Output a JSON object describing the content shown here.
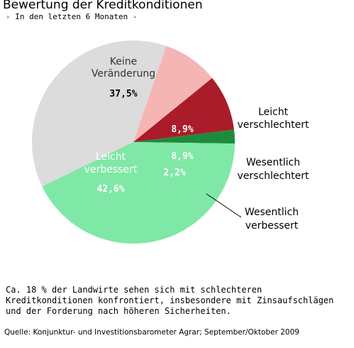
{
  "header": {
    "title": "Bewertung der Kreditkonditionen",
    "subtitle": "- In den letzten 6 Monaten -"
  },
  "chart_data": {
    "type": "pie",
    "title": "Bewertung der Kreditkonditionen",
    "subtitle": "- In den letzten 6 Monaten -",
    "slices": [
      {
        "label": "Keine Veränderung",
        "value": 37.5,
        "value_label": "37,5%",
        "color": "#dcdcdc"
      },
      {
        "label": "Leicht verschlechtert",
        "value": 8.9,
        "value_label": "8,9%",
        "color": "#f5b5b5"
      },
      {
        "label": "Wesentlich verschlechtert",
        "value": 8.9,
        "value_label": "8,9%",
        "color": "#aa1c2a"
      },
      {
        "label": "Wesentlich verbessert",
        "value": 2.2,
        "value_label": "2,2%",
        "color": "#1e8a3c"
      },
      {
        "label": "Leicht verbessert",
        "value": 42.6,
        "value_label": "42,6%",
        "color": "#7fe8a6"
      }
    ]
  },
  "footnote": "Ca. 18 % der Landwirte sehen sich mit schlechteren Kreditkonditionen konfrontiert, insbesondere mit Zinsaufschlägen und der Forderung nach höheren Sicherheiten.",
  "source": "Quelle: Konjunktur- und Investitionsbarometer Agrar; September/Oktober 2009"
}
